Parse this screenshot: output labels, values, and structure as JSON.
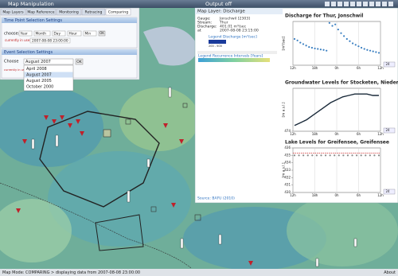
{
  "header": {
    "title": "Map Manipulation",
    "output": "Output off"
  },
  "tabs": [
    "Map Layers",
    "Map Reference",
    "Monitoring",
    "Retracing",
    "Comparing"
  ],
  "time_point": {
    "title": "Time Point Selection Settings",
    "choose": "choose:",
    "fields": [
      "Year",
      "Month",
      "Day",
      "Hour",
      "Min"
    ],
    "ok": "OK",
    "in_use_label": "currently in use:",
    "in_use": "2007-08-08 23:00:00"
  },
  "event": {
    "title": "Event Selection Settings",
    "choose": "Choose",
    "selected": "August 2007",
    "ok": "OK",
    "note": "currently in use",
    "options": [
      "April 2008",
      "August 2007",
      "August 2005",
      "October 2000"
    ]
  },
  "output": {
    "layer": "Map Layer: Discharge",
    "info": [
      [
        "Gauge:",
        "Jonschwil [2303]"
      ],
      [
        "Stream:",
        "Thur"
      ],
      [
        "Discharge:",
        "401.01 m³/sec"
      ],
      [
        "at",
        "2007-08-08 23:15:00"
      ]
    ],
    "legend_discharge": "Legend Discharge [m³/sec]",
    "legend_range": "200 - 500",
    "legend_recurrence": "Legend Recurrence Intervals [Years]",
    "source": "Source: BAFU (2010)"
  },
  "charts": [
    {
      "type": "scatter",
      "title": "Discharge for Thur, Jonschwil",
      "y_label": "[m³/sec]",
      "ylim": [
        150,
        450
      ],
      "yticks": [],
      "xticks": [
        "12h",
        "18h",
        "0h",
        "6h",
        "12h"
      ],
      "period": "24",
      "color": "#3a7fc1",
      "values": [
        330,
        320,
        305,
        295,
        285,
        275,
        270,
        265,
        262,
        258,
        255,
        250,
        440,
        420,
        430,
        395,
        370,
        350,
        330,
        315,
        300,
        290,
        280,
        270,
        262,
        255,
        250,
        245,
        240,
        235
      ]
    },
    {
      "type": "line",
      "title": "Groundwater Levels for Stocketen, Niederbühren",
      "y_label": "[m a.s.l.]",
      "ylim": [
        474,
        477
      ],
      "yticks": [
        474
      ],
      "xticks": [
        "12h",
        "18h",
        "0h",
        "6h",
        "12h"
      ],
      "period": "24",
      "color": "#1a2a3a",
      "values": [
        474.4,
        474.6,
        474.8,
        475.1,
        475.4,
        475.7,
        476.0,
        476.2,
        476.4,
        476.5,
        476.6,
        476.6,
        476.6,
        476.5,
        476.5
      ]
    },
    {
      "type": "scatter",
      "title": "Lake Levels for Greifensee, Greifensee",
      "y_label": "[m a.s.l.]",
      "ylim": [
        430,
        436
      ],
      "yticks": [
        430,
        431,
        432,
        433,
        434,
        435,
        436
      ],
      "xticks": [
        "12h",
        "18h",
        "0h",
        "6h",
        "12h"
      ],
      "period": "24",
      "color": "#888888",
      "threshold": 435.3,
      "threshold_color": "#d03030",
      "values": [
        435.0,
        435.0,
        435.0,
        435.0,
        435.0,
        435.0,
        435.0,
        435.0,
        435.0,
        435.0,
        435.0,
        435.0,
        435.0,
        435.0,
        435.0,
        435.0,
        435.0,
        435.0,
        435.0,
        435.0
      ]
    }
  ],
  "status": {
    "text": "Map Mode: COMPARING > displaying data from 2007-08-08 23:00:00",
    "about": "About"
  }
}
